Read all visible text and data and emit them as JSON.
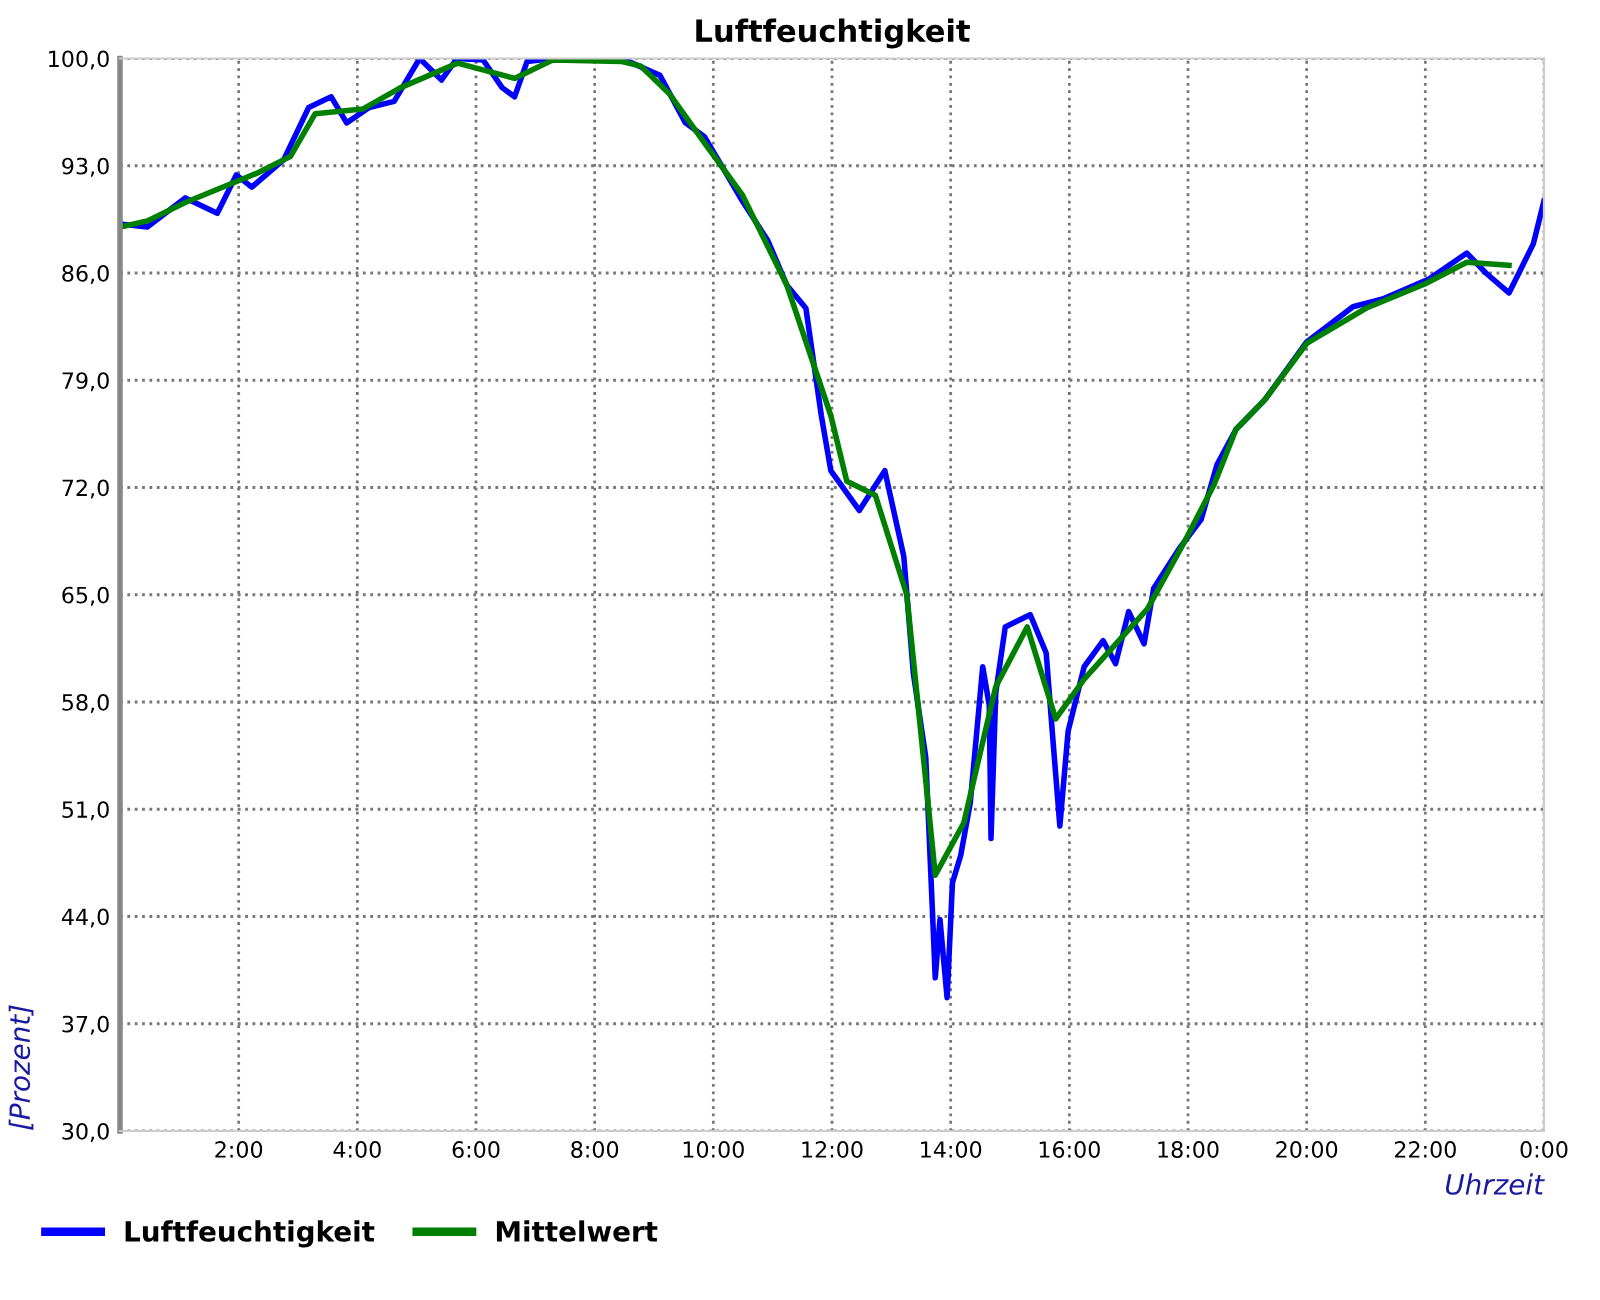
{
  "chart_data": {
    "type": "line",
    "title": "Luftfeuchtigkeit",
    "xlabel": "Uhrzeit",
    "ylabel": "[Prozent]",
    "xlim": [
      0,
      24
    ],
    "ylim": [
      30,
      100
    ],
    "xticks": [
      {
        "value": 2,
        "label": "2:00"
      },
      {
        "value": 4,
        "label": "4:00"
      },
      {
        "value": 6,
        "label": "6:00"
      },
      {
        "value": 8,
        "label": "8:00"
      },
      {
        "value": 10,
        "label": "10:00"
      },
      {
        "value": 12,
        "label": "12:00"
      },
      {
        "value": 14,
        "label": "14:00"
      },
      {
        "value": 16,
        "label": "16:00"
      },
      {
        "value": 18,
        "label": "18:00"
      },
      {
        "value": 20,
        "label": "20:00"
      },
      {
        "value": 22,
        "label": "22:00"
      },
      {
        "value": 24,
        "label": "0:00"
      }
    ],
    "yticks": [
      {
        "value": 30,
        "label": "30,0"
      },
      {
        "value": 37,
        "label": "37,0"
      },
      {
        "value": 44,
        "label": "44,0"
      },
      {
        "value": 51,
        "label": "51,0"
      },
      {
        "value": 58,
        "label": "58,0"
      },
      {
        "value": 65,
        "label": "65,0"
      },
      {
        "value": 72,
        "label": "72,0"
      },
      {
        "value": 79,
        "label": "79,0"
      },
      {
        "value": 86,
        "label": "86,0"
      },
      {
        "value": 93,
        "label": "93,0"
      },
      {
        "value": 100,
        "label": "100,0"
      }
    ],
    "grid": true,
    "legend": "bottom left",
    "marker": "none",
    "line_style": "solid",
    "series": [
      {
        "name": "Luftfeuchtigkeit",
        "color": "#0000ff",
        "x": [
          0,
          0.46,
          1.1,
          1.64,
          1.96,
          2.22,
          2.76,
          3.18,
          3.56,
          3.82,
          4.2,
          4.62,
          5.05,
          5.42,
          5.68,
          6.12,
          6.44,
          6.65,
          6.86,
          7.3,
          8.46,
          9.1,
          9.53,
          9.85,
          10.49,
          10.92,
          11.24,
          11.56,
          11.82,
          11.98,
          12.46,
          12.89,
          13.21,
          13.37,
          13.58,
          13.69,
          13.74,
          13.82,
          13.94,
          14.03,
          14.17,
          14.33,
          14.54,
          14.65,
          14.68,
          14.76,
          14.92,
          15.34,
          15.61,
          15.72,
          15.84,
          15.98,
          16.25,
          16.57,
          16.78,
          17.0,
          17.26,
          17.42,
          17.85,
          18.22,
          18.49,
          18.81,
          19.29,
          20.0,
          20.78,
          21.28,
          22.06,
          22.7,
          23.02,
          23.41,
          23.82,
          24.0
        ],
        "values": [
          89.2,
          89.0,
          90.9,
          89.9,
          92.4,
          91.6,
          93.4,
          96.8,
          97.5,
          95.8,
          96.8,
          97.2,
          100,
          98.6,
          100,
          99.9,
          98.1,
          97.5,
          99.8,
          100,
          100,
          98.9,
          95.8,
          94.9,
          90.7,
          88.1,
          85.2,
          83.7,
          76.7,
          73.1,
          70.5,
          73.1,
          67.5,
          59.9,
          54.4,
          44.6,
          40.0,
          43.8,
          38.7,
          46.2,
          48.0,
          51.4,
          60.3,
          57.8,
          49.1,
          58.6,
          62.9,
          63.7,
          61.2,
          55.7,
          49.9,
          56.1,
          60.3,
          62.0,
          60.5,
          63.9,
          61.8,
          65.4,
          68.0,
          69.9,
          73.5,
          75.8,
          77.7,
          81.5,
          83.8,
          84.3,
          85.6,
          87.3,
          86.0,
          84.7,
          87.9,
          90.7
        ]
      },
      {
        "name": "Mittelwert",
        "color": "#008000",
        "x": [
          0,
          0.46,
          1.1,
          2.3,
          2.87,
          3.29,
          4.09,
          4.73,
          5.69,
          6.65,
          7.29,
          8.46,
          8.78,
          9.26,
          9.85,
          10.49,
          11.24,
          11.98,
          12.25,
          12.73,
          13.26,
          13.64,
          13.74,
          14.22,
          14.76,
          15.29,
          15.77,
          16.25,
          17.32,
          17.96,
          18.44,
          18.81,
          19.29,
          20.0,
          21.0,
          22.0,
          22.7,
          23.41
        ],
        "values": [
          89.0,
          89.4,
          90.6,
          92.5,
          93.6,
          96.4,
          96.7,
          98.1,
          99.7,
          98.7,
          99.9,
          99.8,
          99.5,
          97.7,
          94.5,
          91.1,
          85.2,
          76.7,
          72.4,
          71.5,
          65.0,
          50.6,
          46.7,
          50.1,
          59.0,
          62.9,
          56.9,
          59.5,
          64.1,
          68.6,
          72.2,
          75.8,
          77.7,
          81.4,
          83.7,
          85.3,
          86.7,
          86.5
        ]
      }
    ]
  }
}
